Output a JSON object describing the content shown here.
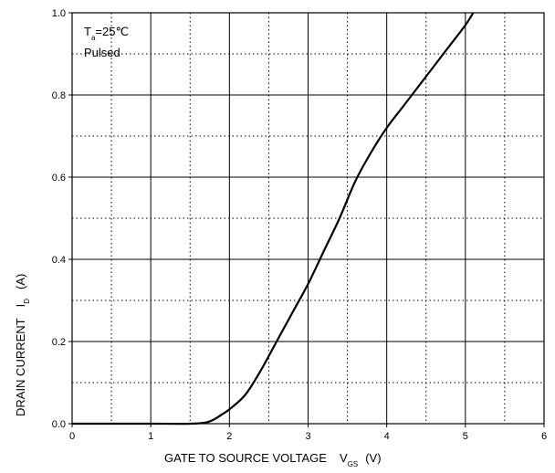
{
  "chart_data": {
    "type": "line",
    "title": "",
    "xlabel": "GATE TO SOURCE VOLTAGE",
    "xlabel_symbol": "V",
    "xlabel_subscript": "GS",
    "xlabel_unit": "(V)",
    "ylabel": "DRAIN CURRENT",
    "ylabel_symbol": "I",
    "ylabel_subscript": "D",
    "ylabel_unit": "(A)",
    "xlim": [
      0,
      6
    ],
    "ylim": [
      0,
      1.0
    ],
    "x_ticks": [
      0,
      1,
      2,
      3,
      4,
      5,
      6
    ],
    "x_tick_labels": [
      "0",
      "1",
      "2",
      "3",
      "4",
      "5",
      "6"
    ],
    "y_ticks": [
      0,
      0.2,
      0.4,
      0.6,
      0.8,
      1.0
    ],
    "y_tick_labels": [
      "0.0",
      "0.2",
      "0.4",
      "0.6",
      "0.8",
      "1.0"
    ],
    "grid": true,
    "annotations": {
      "temp_symbol": "T",
      "temp_subscript": "a",
      "temp_value": "=25℃",
      "mode": "Pulsed"
    },
    "series": [
      {
        "color": "#000000",
        "x": [
          0,
          1.0,
          1.5,
          1.7,
          1.8,
          1.9,
          2.0,
          2.2,
          2.4,
          2.6,
          2.8,
          3.0,
          3.2,
          3.4,
          3.6,
          3.8,
          4.0,
          4.2,
          4.4,
          4.6,
          4.8,
          5.0,
          5.1
        ],
        "y": [
          0,
          0,
          0,
          0.003,
          0.01,
          0.022,
          0.035,
          0.07,
          0.13,
          0.2,
          0.27,
          0.34,
          0.42,
          0.5,
          0.59,
          0.66,
          0.72,
          0.77,
          0.82,
          0.87,
          0.92,
          0.97,
          1.0
        ]
      }
    ]
  }
}
